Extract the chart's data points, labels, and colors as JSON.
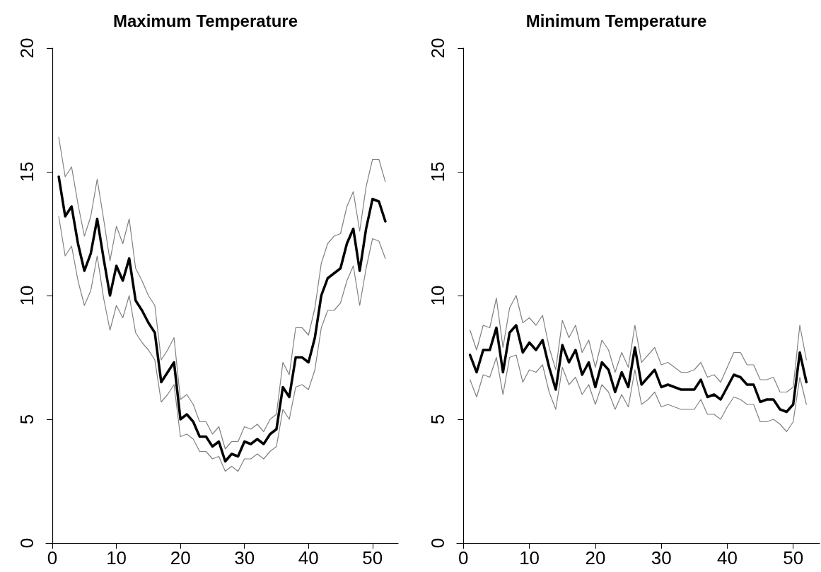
{
  "chart_data": [
    {
      "type": "line",
      "title": "Maximum Temperature",
      "x": [
        1,
        2,
        3,
        4,
        5,
        6,
        7,
        8,
        9,
        10,
        11,
        12,
        13,
        14,
        15,
        16,
        17,
        18,
        19,
        20,
        21,
        22,
        23,
        24,
        25,
        26,
        27,
        28,
        29,
        30,
        31,
        32,
        33,
        34,
        35,
        36,
        37,
        38,
        39,
        40,
        41,
        42,
        43,
        44,
        45,
        46,
        47,
        48,
        49,
        50,
        51,
        52
      ],
      "xlim": [
        -1,
        54
      ],
      "xticks": [
        0,
        10,
        20,
        30,
        40,
        50
      ],
      "ylim": [
        0,
        20
      ],
      "yticks": [
        0,
        5,
        10,
        15,
        20
      ],
      "series": [
        {
          "color": "#000000",
          "values": [
            14.8,
            13.2,
            13.6,
            12.1,
            11.0,
            11.7,
            13.1,
            11.5,
            10.0,
            11.2,
            10.6,
            11.5,
            9.8,
            9.4,
            8.9,
            8.5,
            6.5,
            6.9,
            7.3,
            5.0,
            5.2,
            4.9,
            4.3,
            4.3,
            3.9,
            4.1,
            3.3,
            3.6,
            3.5,
            4.1,
            4.0,
            4.2,
            4.0,
            4.4,
            4.6,
            6.3,
            5.9,
            7.5,
            7.5,
            7.3,
            8.3,
            10.0,
            10.7,
            10.9,
            11.1,
            12.1,
            12.7,
            11.0,
            12.7,
            13.9,
            13.8,
            13.0
          ]
        },
        {
          "color": "#808080",
          "values": [
            16.4,
            14.8,
            15.2,
            13.7,
            12.4,
            13.2,
            14.7,
            13.1,
            11.4,
            12.8,
            12.1,
            13.1,
            11.1,
            10.6,
            10.0,
            9.6,
            7.4,
            7.8,
            8.3,
            5.8,
            6.0,
            5.6,
            4.9,
            4.9,
            4.4,
            4.7,
            3.8,
            4.1,
            4.1,
            4.7,
            4.6,
            4.8,
            4.5,
            5.0,
            5.2,
            7.3,
            6.8,
            8.7,
            8.7,
            8.4,
            9.5,
            11.3,
            12.1,
            12.4,
            12.5,
            13.6,
            14.2,
            12.6,
            14.4,
            15.5,
            15.5,
            14.6
          ]
        },
        {
          "color": "#808080",
          "values": [
            13.2,
            11.6,
            12.0,
            10.6,
            9.6,
            10.2,
            11.6,
            9.9,
            8.6,
            9.6,
            9.1,
            10.0,
            8.5,
            8.1,
            7.8,
            7.4,
            5.7,
            6.0,
            6.4,
            4.3,
            4.4,
            4.2,
            3.7,
            3.7,
            3.4,
            3.5,
            2.9,
            3.1,
            2.9,
            3.4,
            3.4,
            3.6,
            3.4,
            3.7,
            3.9,
            5.4,
            5.0,
            6.3,
            6.4,
            6.2,
            7.0,
            8.7,
            9.4,
            9.4,
            9.7,
            10.6,
            11.2,
            9.6,
            11.1,
            12.3,
            12.2,
            11.5
          ]
        }
      ]
    },
    {
      "type": "line",
      "title": "Minimum Temperature",
      "x": [
        1,
        2,
        3,
        4,
        5,
        6,
        7,
        8,
        9,
        10,
        11,
        12,
        13,
        14,
        15,
        16,
        17,
        18,
        19,
        20,
        21,
        22,
        23,
        24,
        25,
        26,
        27,
        28,
        29,
        30,
        31,
        32,
        33,
        34,
        35,
        36,
        37,
        38,
        39,
        40,
        41,
        42,
        43,
        44,
        45,
        46,
        47,
        48,
        49,
        50,
        51,
        52
      ],
      "xlim": [
        -1,
        54
      ],
      "xticks": [
        0,
        10,
        20,
        30,
        40,
        50
      ],
      "ylim": [
        0,
        20
      ],
      "yticks": [
        0,
        5,
        10,
        15,
        20
      ],
      "series": [
        {
          "color": "#000000",
          "values": [
            7.6,
            6.9,
            7.8,
            7.8,
            8.7,
            6.9,
            8.5,
            8.8,
            7.7,
            8.1,
            7.8,
            8.2,
            7.1,
            6.2,
            8.0,
            7.3,
            7.8,
            6.8,
            7.3,
            6.3,
            7.3,
            7.0,
            6.1,
            6.9,
            6.3,
            7.9,
            6.4,
            6.7,
            7.0,
            6.3,
            6.4,
            6.3,
            6.2,
            6.2,
            6.2,
            6.6,
            5.9,
            6.0,
            5.8,
            6.3,
            6.8,
            6.7,
            6.4,
            6.4,
            5.7,
            5.8,
            5.8,
            5.4,
            5.3,
            5.6,
            7.7,
            6.5
          ]
        },
        {
          "color": "#808080",
          "values": [
            8.6,
            7.8,
            8.8,
            8.7,
            9.9,
            7.9,
            9.5,
            10.0,
            8.9,
            9.1,
            8.8,
            9.2,
            7.9,
            7.0,
            9.0,
            8.3,
            8.8,
            7.7,
            8.2,
            7.1,
            8.2,
            7.8,
            6.9,
            7.7,
            7.1,
            8.8,
            7.3,
            7.6,
            7.9,
            7.2,
            7.3,
            7.1,
            6.9,
            6.9,
            7.0,
            7.3,
            6.7,
            6.8,
            6.5,
            7.1,
            7.7,
            7.7,
            7.2,
            7.2,
            6.6,
            6.6,
            6.7,
            6.1,
            6.1,
            6.3,
            8.8,
            7.4
          ]
        },
        {
          "color": "#808080",
          "values": [
            6.6,
            5.9,
            6.8,
            6.7,
            7.5,
            6.0,
            7.5,
            7.6,
            6.5,
            7.0,
            6.9,
            7.2,
            6.1,
            5.4,
            7.1,
            6.4,
            6.7,
            6.0,
            6.4,
            5.6,
            6.4,
            6.1,
            5.4,
            6.0,
            5.5,
            7.0,
            5.6,
            5.8,
            6.1,
            5.5,
            5.6,
            5.5,
            5.4,
            5.4,
            5.4,
            5.8,
            5.2,
            5.2,
            5.0,
            5.5,
            5.9,
            5.8,
            5.6,
            5.6,
            4.9,
            4.9,
            5.0,
            4.8,
            4.5,
            4.9,
            6.7,
            5.6
          ]
        }
      ]
    }
  ]
}
